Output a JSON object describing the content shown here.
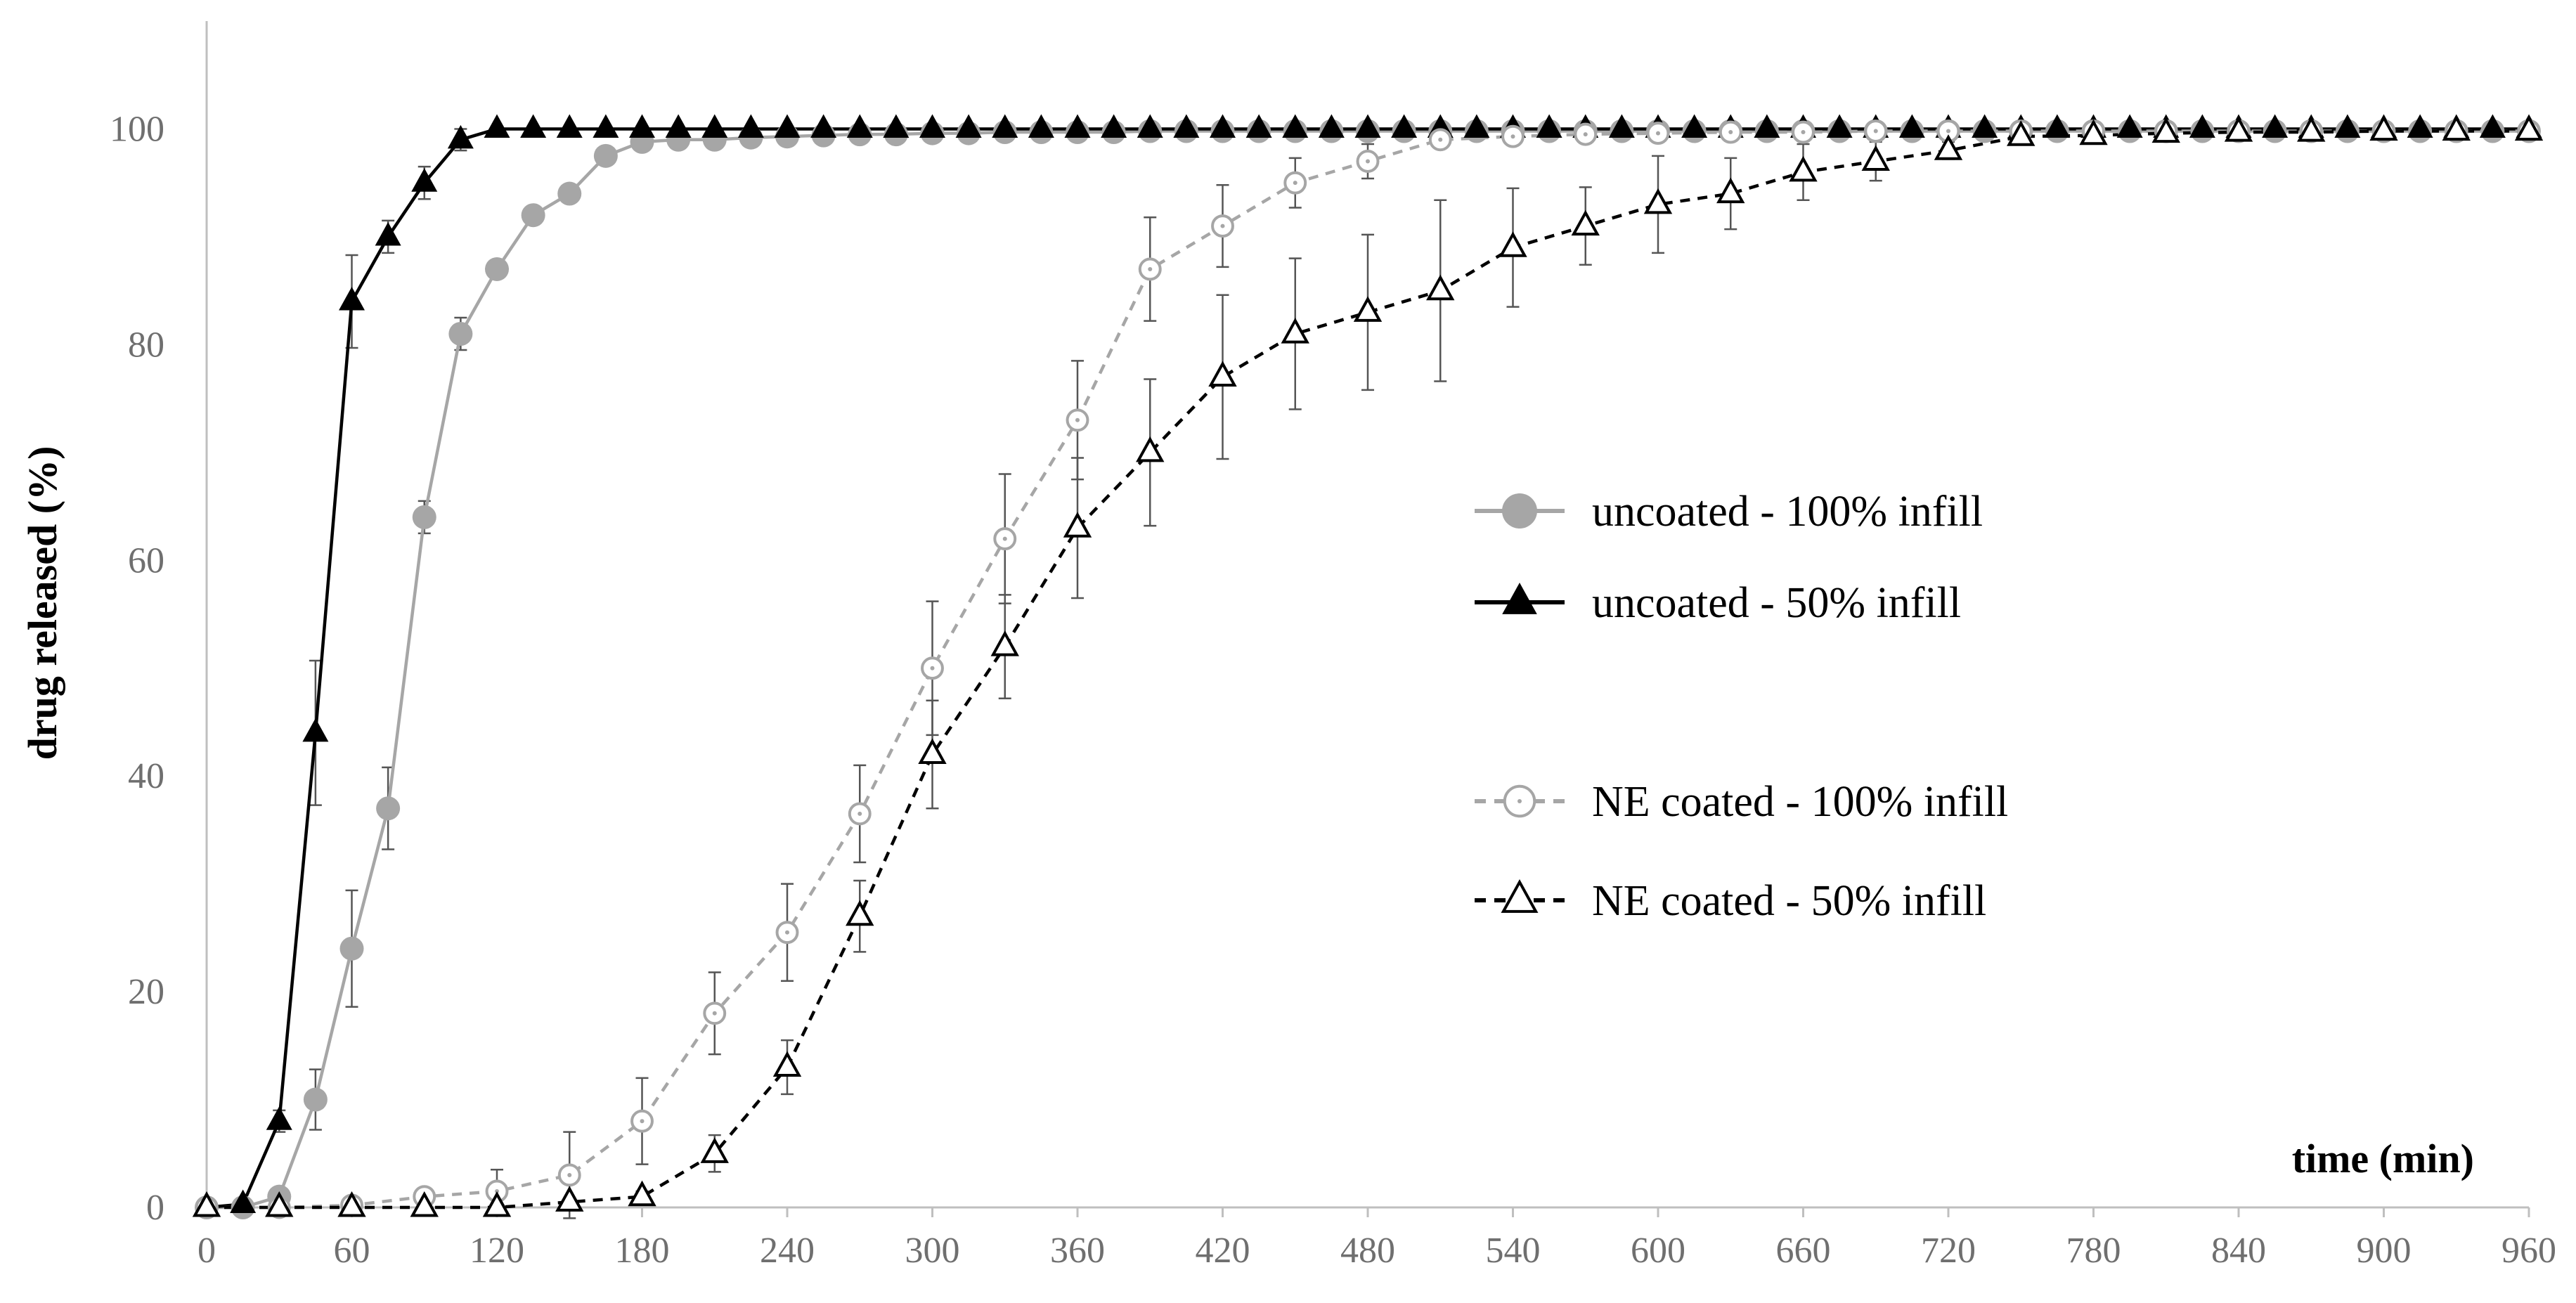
{
  "chart_data": {
    "type": "line",
    "title": "",
    "xlabel": "time (min)",
    "ylabel": "drug released (%)",
    "xlim": [
      0,
      960
    ],
    "ylim": [
      0,
      110
    ],
    "xticks": [
      "0",
      "60",
      "120",
      "180",
      "240",
      "300",
      "360",
      "420",
      "480",
      "540",
      "600",
      "660",
      "720",
      "780",
      "840",
      "900",
      "960"
    ],
    "yticks": [
      "0",
      "20",
      "40",
      "60",
      "80",
      "100"
    ],
    "grid": false,
    "legend_position": "center-right",
    "series": [
      {
        "name": "uncoated - 100% infill",
        "color": "#a6a6a6",
        "line_style": "solid",
        "marker": "filled-circle",
        "x": [
          0,
          15,
          30,
          45,
          60,
          75,
          90,
          105,
          120,
          135,
          150,
          165,
          180,
          195,
          210,
          225,
          240,
          255,
          270,
          285,
          300,
          315,
          330,
          345,
          360,
          375,
          390,
          405,
          420,
          435,
          450,
          465,
          480,
          495,
          510,
          525,
          540,
          555,
          570,
          585,
          600,
          615,
          630,
          645,
          660,
          675,
          690,
          705,
          720,
          735,
          750,
          765,
          780,
          795,
          810,
          825,
          840,
          855,
          870,
          885,
          900,
          915,
          930,
          945,
          960
        ],
        "y": [
          0,
          0,
          1,
          10,
          24,
          37,
          64,
          81,
          87,
          92,
          94,
          97.5,
          98.8,
          99,
          99,
          99.2,
          99.3,
          99.4,
          99.5,
          99.5,
          99.6,
          99.6,
          99.7,
          99.7,
          99.7,
          99.7,
          99.8,
          99.8,
          99.8,
          99.8,
          99.8,
          99.8,
          99.8,
          99.8,
          99.8,
          99.8,
          99.8,
          99.8,
          99.8,
          99.8,
          99.8,
          99.8,
          99.8,
          99.8,
          99.8,
          99.8,
          99.8,
          99.8,
          99.8,
          99.8,
          99.8,
          99.8,
          99.8,
          99.8,
          99.8,
          99.8,
          99.8,
          99.8,
          99.8,
          99.8,
          99.8,
          99.8,
          99.8,
          99.8,
          99.8
        ],
        "error": [
          0,
          0,
          0.5,
          2.8,
          5.4,
          3.8,
          1.5,
          1.5,
          0,
          0,
          0,
          0,
          0,
          0,
          0,
          0,
          0,
          0,
          0,
          0,
          0,
          0,
          0,
          0,
          0,
          0,
          0,
          0,
          0,
          0,
          0,
          0,
          0,
          0,
          0,
          0,
          0,
          0,
          0,
          0,
          0,
          0,
          0,
          0,
          0,
          0,
          0,
          0,
          0,
          0,
          0,
          0,
          0,
          0,
          0,
          0,
          0,
          0,
          0,
          0,
          0,
          0,
          0,
          0,
          0
        ]
      },
      {
        "name": "uncoated - 50% infill",
        "color": "#000000",
        "line_style": "solid",
        "marker": "filled-triangle",
        "x": [
          0,
          15,
          30,
          45,
          60,
          75,
          90,
          105,
          120,
          135,
          150,
          165,
          180,
          195,
          210,
          225,
          240,
          255,
          270,
          285,
          300,
          315,
          330,
          345,
          360,
          375,
          390,
          405,
          420,
          435,
          450,
          465,
          480,
          495,
          510,
          525,
          540,
          555,
          570,
          585,
          600,
          615,
          630,
          645,
          660,
          675,
          690,
          705,
          720,
          735,
          750,
          765,
          780,
          795,
          810,
          825,
          840,
          855,
          870,
          885,
          900,
          915,
          930,
          945,
          960
        ],
        "y": [
          0,
          0.3,
          8,
          44,
          84,
          90,
          95,
          99,
          100,
          100,
          100,
          100,
          100,
          100,
          100,
          100,
          100,
          100,
          100,
          100,
          100,
          100,
          100,
          100,
          100,
          100,
          100,
          100,
          100,
          100,
          100,
          100,
          100,
          100,
          100,
          100,
          100,
          100,
          100,
          100,
          100,
          100,
          100,
          100,
          100,
          100,
          100,
          100,
          100,
          100,
          100,
          100,
          100,
          100,
          100,
          100,
          100,
          100,
          100,
          100,
          100,
          100,
          100,
          100,
          100
        ],
        "error": [
          0,
          0.3,
          1,
          6.7,
          4.3,
          1.5,
          1.5,
          1,
          0,
          0,
          0,
          0,
          0,
          0,
          0,
          0,
          0,
          0,
          0,
          0,
          0,
          0,
          0,
          0,
          0,
          0,
          0,
          0,
          0,
          0,
          0,
          0,
          0,
          0,
          0,
          0,
          0,
          0,
          0,
          0,
          0,
          0,
          0,
          0,
          0,
          0,
          0,
          0,
          0,
          0,
          0,
          0,
          0,
          0,
          0,
          0,
          0,
          0,
          0,
          0,
          0,
          0,
          0,
          0,
          0
        ]
      },
      {
        "name": "NE coated - 100% infill",
        "color": "#a6a6a6",
        "line_style": "dashed",
        "marker": "open-circle",
        "x": [
          0,
          30,
          60,
          90,
          120,
          150,
          180,
          210,
          240,
          270,
          300,
          330,
          360,
          390,
          420,
          450,
          480,
          510,
          540,
          570,
          600,
          630,
          660,
          690,
          720,
          750,
          780,
          810,
          840,
          870,
          900,
          930,
          960
        ],
        "y": [
          0,
          0,
          0.2,
          1,
          1.5,
          3,
          8,
          18,
          25.5,
          36.5,
          50,
          62,
          73,
          87,
          91,
          95,
          97,
          99,
          99.3,
          99.5,
          99.6,
          99.7,
          99.7,
          99.8,
          99.8,
          99.8,
          99.8,
          99.8,
          99.8,
          99.8,
          99.8,
          99.8,
          99.8
        ],
        "error": [
          0,
          0,
          0.3,
          0.6,
          2,
          4,
          4,
          3.8,
          4.5,
          4.5,
          6.2,
          6,
          5.5,
          4.8,
          3.8,
          2.3,
          1.6,
          0.6,
          0.5,
          0,
          0,
          0,
          0,
          0,
          0,
          0,
          0,
          0,
          0,
          0,
          0,
          0,
          0
        ]
      },
      {
        "name": "NE coated - 50% infill",
        "color": "#000000",
        "line_style": "dashed",
        "marker": "open-triangle",
        "x": [
          0,
          30,
          60,
          90,
          120,
          150,
          180,
          210,
          240,
          270,
          300,
          330,
          360,
          390,
          420,
          450,
          480,
          510,
          540,
          570,
          600,
          630,
          660,
          690,
          720,
          750,
          780,
          810,
          840,
          870,
          900,
          930,
          960
        ],
        "y": [
          0,
          0,
          0,
          0,
          0,
          0.5,
          1,
          5,
          13,
          27,
          42,
          52,
          63,
          70,
          77,
          81,
          83,
          85,
          89,
          91,
          93,
          94,
          96,
          97,
          98,
          99.3,
          99.4,
          99.6,
          99.7,
          99.7,
          99.8,
          99.8,
          99.8
        ],
        "error": [
          0,
          0,
          0,
          0,
          0,
          0.3,
          0.5,
          1.7,
          2.5,
          3.3,
          5,
          4.8,
          6.5,
          6.8,
          7.6,
          7,
          7.2,
          8.4,
          5.5,
          3.6,
          4.5,
          3.3,
          2.6,
          1.8,
          0.8,
          0.5,
          0.5,
          0,
          0,
          0,
          0,
          0,
          0
        ]
      }
    ]
  }
}
